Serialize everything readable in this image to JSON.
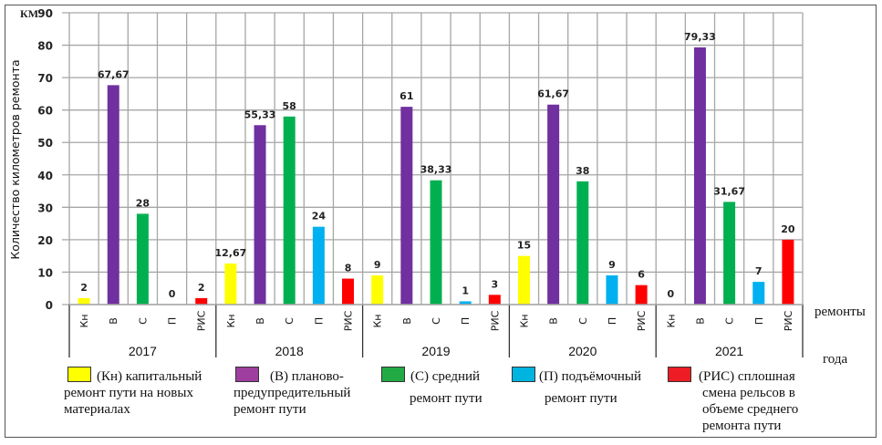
{
  "chart_data": {
    "type": "bar",
    "title": "",
    "ylabel": "Количество километров ремонта",
    "yunit": "км",
    "ylim": [
      0,
      90
    ],
    "yticks": [
      0,
      10,
      20,
      30,
      40,
      50,
      60,
      70,
      80,
      90
    ],
    "grid": true,
    "xlabel_inner": "ремонты",
    "xlabel_outer": "года",
    "groups": [
      "2017",
      "2018",
      "2019",
      "2020",
      "2021"
    ],
    "subcategories": [
      "Кн",
      "В",
      "С",
      "П",
      "РИС"
    ],
    "colors": {
      "Кн": "#ffff00",
      "В": "#7030a0",
      "С": "#00b050",
      "П": "#00b0f0",
      "РИС": "#ff0000"
    },
    "values": [
      [
        2,
        67.67,
        28,
        0,
        2
      ],
      [
        12.67,
        55.33,
        58,
        24,
        8
      ],
      [
        9,
        61,
        38.33,
        1,
        3
      ],
      [
        15,
        61.67,
        38,
        9,
        6
      ],
      [
        0,
        79.33,
        31.67,
        7,
        20
      ]
    ],
    "labels": [
      [
        "2",
        "67,67",
        "28",
        "0",
        "2"
      ],
      [
        "12,67",
        "55,33",
        "58",
        "24",
        "8"
      ],
      [
        "9",
        "61",
        "38,33",
        "1",
        "3"
      ],
      [
        "15",
        "61,67",
        "38",
        "9",
        "6"
      ],
      [
        "0",
        "79,33",
        "31,67",
        "7",
        "20"
      ]
    ],
    "legend": [
      {
        "key": "Кн",
        "color": "#ffff00",
        "line1": "(Кн) капитальный",
        "line2": "ремонт пути на новых",
        "line3": "материалах",
        "line4": ""
      },
      {
        "key": "В",
        "color": "#9e3e9e",
        "line1": "(В) планово-",
        "line2": "предупредительный",
        "line3": "ремонт пути",
        "line4": ""
      },
      {
        "key": "С",
        "color": "#22aa44",
        "line1": "(С) средний",
        "line2": "ремонт пути",
        "line3": "",
        "line4": ""
      },
      {
        "key": "П",
        "color": "#00b4e0",
        "line1": "(П) подъёмочный",
        "line2": "ремонт пути",
        "line3": "",
        "line4": ""
      },
      {
        "key": "РИС",
        "color": "#ee1c24",
        "line1": "(РИС) сплошная",
        "line2": "смена рельсов в",
        "line3": "объеме среднего",
        "line4": "ремонта пути"
      }
    ]
  }
}
